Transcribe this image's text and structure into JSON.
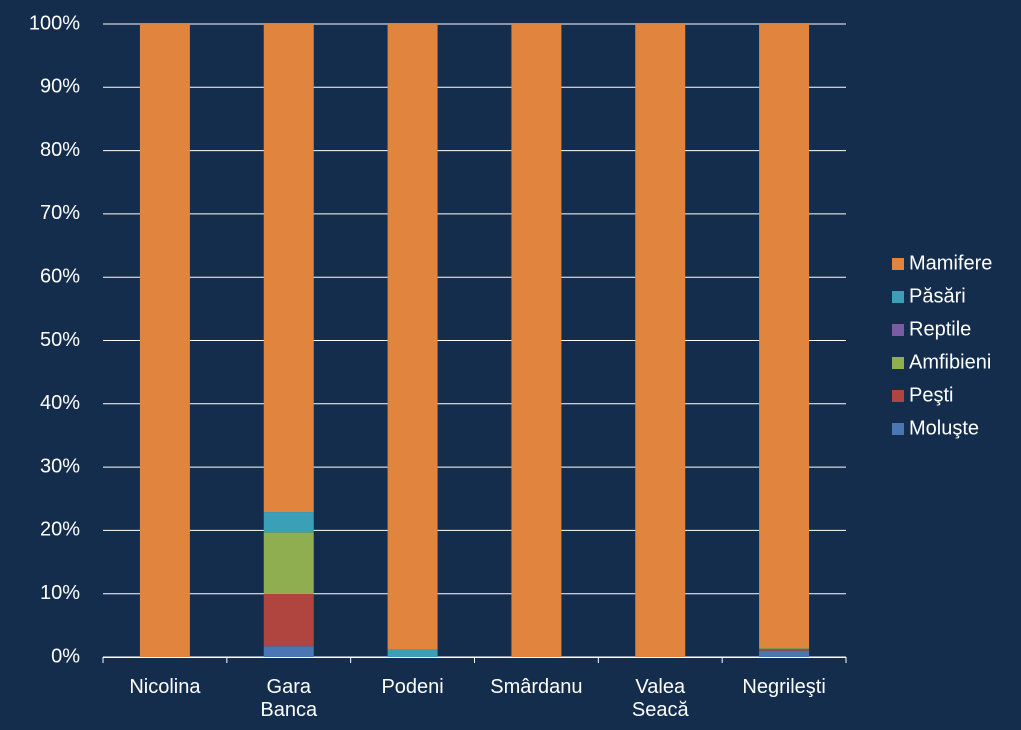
{
  "chart_data": {
    "type": "bar",
    "stacked": true,
    "categories": [
      "Nicolina",
      "Gara Banca",
      "Podeni",
      "Smârdanu",
      "Valea Seacă",
      "Negrileşti"
    ],
    "series": [
      {
        "name": "Moluşte",
        "color": "#4a77b4",
        "values": [
          0,
          1.7,
          0,
          0,
          0,
          1.0
        ]
      },
      {
        "name": "Peşti",
        "color": "#b0453f",
        "values": [
          0,
          8.3,
          0,
          0,
          0,
          0.3
        ]
      },
      {
        "name": "Amfibieni",
        "color": "#8fae4f",
        "values": [
          0,
          9.7,
          0,
          0,
          0,
          0.2
        ]
      },
      {
        "name": "Reptile",
        "color": "#7a5da0",
        "values": [
          0,
          0,
          0,
          0,
          0,
          0
        ]
      },
      {
        "name": "Păsări",
        "color": "#3b9fb7",
        "values": [
          0,
          3.2,
          1.2,
          0,
          0,
          0
        ]
      },
      {
        "name": "Mamifere",
        "color": "#e0843e",
        "values": [
          100,
          77.1,
          98.8,
          100,
          100,
          98.5
        ]
      }
    ],
    "ylim": [
      0,
      100
    ],
    "yticks": [
      {
        "value": 0,
        "label": "0%"
      },
      {
        "value": 10,
        "label": "10%"
      },
      {
        "value": 20,
        "label": "20%"
      },
      {
        "value": 30,
        "label": "30%"
      },
      {
        "value": 40,
        "label": "40%"
      },
      {
        "value": 50,
        "label": "50%"
      },
      {
        "value": 60,
        "label": "60%"
      },
      {
        "value": 70,
        "label": "70%"
      },
      {
        "value": 80,
        "label": "80%"
      },
      {
        "value": 90,
        "label": "90%"
      },
      {
        "value": 100,
        "label": "100%"
      }
    ],
    "grid": true,
    "legend": "right"
  }
}
